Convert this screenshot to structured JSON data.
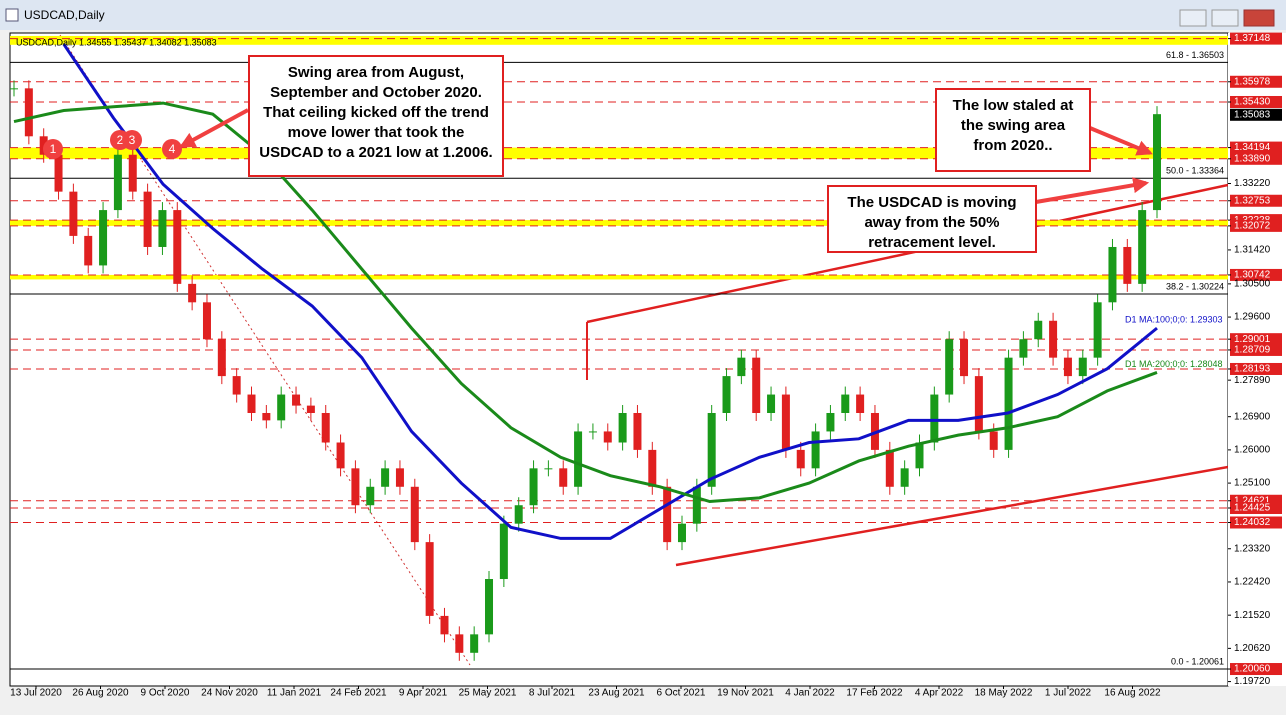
{
  "window": {
    "title": "USDCAD,Daily"
  },
  "chart_info": "USDCAD,Daily  1.34555 1.35437 1.34082 1.35083",
  "ylim": [
    1.196,
    1.373
  ],
  "price_axis": [
    {
      "text": "1.37148",
      "tag": true
    },
    {
      "text": "1.35978",
      "tag": true
    },
    {
      "text": "1.35430",
      "tag": true
    },
    {
      "text": "1.34194",
      "tag": true
    },
    {
      "text": "1.33890",
      "tag": true
    },
    {
      "text": "1.33220",
      "tag": false
    },
    {
      "text": "1.32753",
      "tag": true
    },
    {
      "text": "1.32228",
      "tag": true
    },
    {
      "text": "1.32072",
      "tag": true
    },
    {
      "text": "1.31420",
      "tag": false
    },
    {
      "text": "1.30742",
      "tag": true
    },
    {
      "text": "1.30500",
      "tag": false
    },
    {
      "text": "1.29600",
      "tag": false
    },
    {
      "text": "1.29001",
      "tag": true
    },
    {
      "text": "1.28709",
      "tag": true
    },
    {
      "text": "1.28193",
      "tag": true
    },
    {
      "text": "1.27890",
      "tag": false
    },
    {
      "text": "1.26900",
      "tag": false
    },
    {
      "text": "1.26000",
      "tag": false
    },
    {
      "text": "1.25100",
      "tag": false
    },
    {
      "text": "1.24621",
      "tag": true
    },
    {
      "text": "1.24425",
      "tag": true
    },
    {
      "text": "1.24032",
      "tag": true
    },
    {
      "text": "1.23320",
      "tag": false
    },
    {
      "text": "1.22420",
      "tag": false
    },
    {
      "text": "1.21520",
      "tag": false
    },
    {
      "text": "1.20620",
      "tag": false
    },
    {
      "text": "1.20060",
      "tag": true
    },
    {
      "text": "1.19720",
      "tag": false
    }
  ],
  "current_price": "1.35083",
  "fib_levels": [
    {
      "label": "61.8 - 1.36503",
      "value": 1.36503
    },
    {
      "label": "50.0 - 1.33364",
      "value": 1.33364
    },
    {
      "label": "38.2 - 1.30224",
      "value": 1.30224
    },
    {
      "label": "0.0 - 1.20061",
      "value": 1.20061
    }
  ],
  "bands": [
    [
      1.3722,
      1.3698
    ],
    [
      1.34194,
      1.3389
    ],
    [
      1.32228,
      1.32072
    ],
    [
      1.30742,
      1.3062
    ]
  ],
  "date_axis": [
    "13 Jul 2020",
    "26 Aug 2020",
    "9 Oct 2020",
    "24 Nov 2020",
    "11 Jan 2021",
    "24 Feb 2021",
    "9 Apr 2021",
    "25 May 2021",
    "8 Jul 2021",
    "23 Aug 2021",
    "6 Oct 2021",
    "19 Nov 2021",
    "4 Jan 2022",
    "17 Feb 2022",
    "4 Apr 2022",
    "18 May 2022",
    "1 Jul 2022",
    "16 Aug 2022"
  ],
  "closes": [
    1.358,
    1.345,
    1.34,
    1.33,
    1.318,
    1.31,
    1.325,
    1.34,
    1.33,
    1.315,
    1.325,
    1.305,
    1.3,
    1.29,
    1.28,
    1.275,
    1.27,
    1.268,
    1.275,
    1.272,
    1.27,
    1.262,
    1.255,
    1.245,
    1.25,
    1.255,
    1.25,
    1.235,
    1.215,
    1.21,
    1.205,
    1.21,
    1.225,
    1.24,
    1.245,
    1.255,
    1.255,
    1.25,
    1.265,
    1.265,
    1.262,
    1.27,
    1.26,
    1.25,
    1.235,
    1.24,
    1.25,
    1.27,
    1.28,
    1.285,
    1.27,
    1.275,
    1.26,
    1.255,
    1.265,
    1.27,
    1.275,
    1.27,
    1.26,
    1.25,
    1.255,
    1.262,
    1.275,
    1.29,
    1.28,
    1.265,
    1.26,
    1.285,
    1.29,
    1.295,
    1.285,
    1.28,
    1.285,
    1.3,
    1.315,
    1.305,
    1.325,
    1.351
  ],
  "ma100": {
    "label": "D1 MA:100;0;0: 1.29303",
    "color": "#1010c8",
    "values": [
      null,
      1.37,
      1.35,
      1.332,
      1.32,
      1.309,
      1.299,
      1.285,
      1.265,
      1.251,
      1.239,
      1.236,
      1.236,
      1.244,
      1.252,
      1.258,
      1.262,
      1.263,
      1.268,
      1.268,
      1.27,
      1.275,
      1.282,
      1.293
    ]
  },
  "ma200": {
    "label": "D1 MA:200;0;0: 1.28048",
    "color": "#1a8a1a",
    "values": [
      1.349,
      1.352,
      1.353,
      1.354,
      1.351,
      1.34,
      1.325,
      1.309,
      1.293,
      1.278,
      1.266,
      1.258,
      1.253,
      1.25,
      1.246,
      1.247,
      1.251,
      1.257,
      1.261,
      1.264,
      1.266,
      1.269,
      1.276,
      1.281
    ]
  },
  "annotations": [
    "Swing area from August, September and October 2020. That ceiling kicked off the trend move lower that took the USDCAD to a 2021 low at 1.2006.",
    "The low staled at the swing area from 2020..",
    "The USDCAD is moving away from the 50% retracement level."
  ],
  "markers": [
    "1",
    "2",
    "3",
    "4"
  ]
}
